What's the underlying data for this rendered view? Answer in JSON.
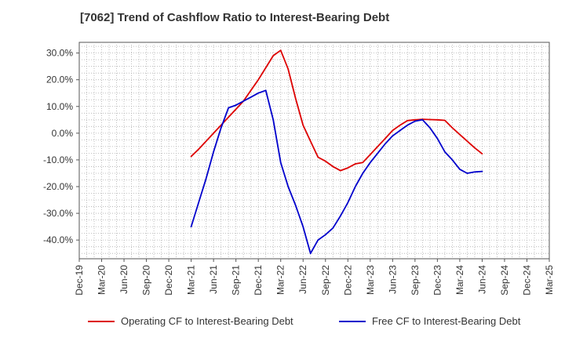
{
  "chart_data": {
    "type": "line",
    "title": "[7062]  Trend of Cashflow Ratio to Interest-Bearing Debt",
    "xlabel": "",
    "ylabel": "",
    "x_ticks": [
      "Dec-19",
      "Mar-20",
      "Jun-20",
      "Sep-20",
      "Dec-20",
      "Mar-21",
      "Jun-21",
      "Sep-21",
      "Dec-21",
      "Mar-22",
      "Jun-22",
      "Sep-22",
      "Dec-22",
      "Mar-23",
      "Jun-23",
      "Sep-23",
      "Dec-23",
      "Mar-24",
      "Jun-24",
      "Sep-24",
      "Dec-24",
      "Mar-25"
    ],
    "y_ticks": [
      "30.0%",
      "20.0%",
      "10.0%",
      "0.0%",
      "-10.0%",
      "-20.0%",
      "-30.0%",
      "-40.0%"
    ],
    "ylim": [
      -47,
      34
    ],
    "grid": true,
    "legend_position": "bottom",
    "series": [
      {
        "name": "Operating CF to Interest-Bearing Debt",
        "color": "#dd0000",
        "points": [
          [
            "Mar-21",
            -8.7
          ],
          [
            "Apr-21",
            -6.0
          ],
          [
            "May-21",
            -3.0
          ],
          [
            "Jun-21",
            0.0
          ],
          [
            "Jul-21",
            3.0
          ],
          [
            "Aug-21",
            6.0
          ],
          [
            "Sep-21",
            9.0
          ],
          [
            "Oct-21",
            12.0
          ],
          [
            "Nov-21",
            16.0
          ],
          [
            "Dec-21",
            20.0
          ],
          [
            "Jan-22",
            24.5
          ],
          [
            "Feb-22",
            29.0
          ],
          [
            "Mar-22",
            31.0
          ],
          [
            "Apr-22",
            24.0
          ],
          [
            "May-22",
            13.0
          ],
          [
            "Jun-22",
            3.0
          ],
          [
            "Jul-22",
            -3.0
          ],
          [
            "Aug-22",
            -9.0
          ],
          [
            "Sep-22",
            -10.5
          ],
          [
            "Oct-22",
            -12.5
          ],
          [
            "Nov-22",
            -14.0
          ],
          [
            "Dec-22",
            -13.0
          ],
          [
            "Jan-23",
            -11.5
          ],
          [
            "Feb-23",
            -11.0
          ],
          [
            "Mar-23",
            -8.0
          ],
          [
            "Apr-23",
            -5.0
          ],
          [
            "May-23",
            -2.0
          ],
          [
            "Jun-23",
            1.0
          ],
          [
            "Jul-23",
            3.0
          ],
          [
            "Aug-23",
            4.7
          ],
          [
            "Sep-23",
            5.0
          ],
          [
            "Oct-23",
            5.2
          ],
          [
            "Nov-23",
            5.1
          ],
          [
            "Dec-23",
            5.0
          ],
          [
            "Jan-24",
            4.8
          ],
          [
            "Feb-24",
            2.0
          ],
          [
            "Mar-24",
            -0.5
          ],
          [
            "Apr-24",
            -3.0
          ],
          [
            "May-24",
            -5.5
          ],
          [
            "Jun-24",
            -7.7
          ]
        ]
      },
      {
        "name": "Free CF to Interest-Bearing Debt",
        "color": "#0000cc",
        "points": [
          [
            "Mar-21",
            -35.0
          ],
          [
            "Apr-21",
            -26.0
          ],
          [
            "May-21",
            -17.0
          ],
          [
            "Jun-21",
            -7.0
          ],
          [
            "Jul-21",
            2.0
          ],
          [
            "Aug-21",
            9.5
          ],
          [
            "Sep-21",
            10.5
          ],
          [
            "Oct-21",
            12.0
          ],
          [
            "Nov-21",
            13.5
          ],
          [
            "Dec-21",
            15.0
          ],
          [
            "Jan-22",
            16.0
          ],
          [
            "Feb-22",
            5.0
          ],
          [
            "Mar-22",
            -11.0
          ],
          [
            "Apr-22",
            -20.0
          ],
          [
            "May-22",
            -27.0
          ],
          [
            "Jun-22",
            -35.0
          ],
          [
            "Jul-22",
            -45.0
          ],
          [
            "Aug-22",
            -40.0
          ],
          [
            "Sep-22",
            -38.0
          ],
          [
            "Oct-22",
            -35.5
          ],
          [
            "Nov-22",
            -31.0
          ],
          [
            "Dec-22",
            -26.0
          ],
          [
            "Jan-23",
            -20.0
          ],
          [
            "Feb-23",
            -15.0
          ],
          [
            "Mar-23",
            -11.0
          ],
          [
            "Apr-23",
            -7.5
          ],
          [
            "May-23",
            -4.0
          ],
          [
            "Jun-23",
            -1.0
          ],
          [
            "Jul-23",
            1.0
          ],
          [
            "Aug-23",
            3.0
          ],
          [
            "Sep-23",
            4.5
          ],
          [
            "Oct-23",
            5.0
          ],
          [
            "Nov-23",
            2.0
          ],
          [
            "Dec-23",
            -2.0
          ],
          [
            "Jan-24",
            -7.0
          ],
          [
            "Feb-24",
            -10.0
          ],
          [
            "Mar-24",
            -13.5
          ],
          [
            "Apr-24",
            -15.0
          ],
          [
            "May-24",
            -14.5
          ],
          [
            "Jun-24",
            -14.3
          ]
        ]
      }
    ]
  }
}
